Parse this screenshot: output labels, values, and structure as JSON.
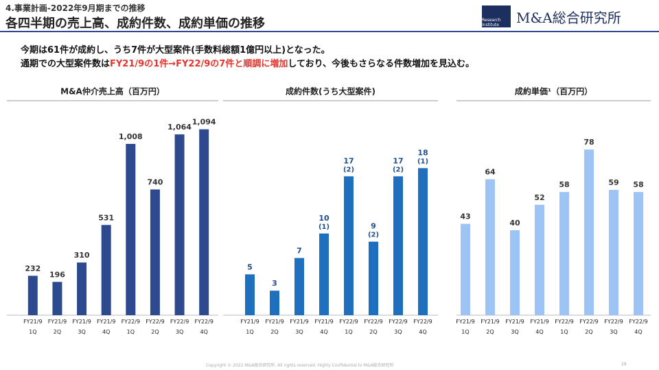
{
  "header": {
    "section": "4.事業計画-2022年9月期までの推移",
    "title": "各四半期の売上高、成約件数、成約単価の推移",
    "logo_mark": "Research Institute",
    "logo": "M&A総合研究所"
  },
  "summary": {
    "line1": "今期は61件が成約し、うち7件が大型案件(手数料総額1億円以上)となった。",
    "line2_before": "通期での大型案件数は",
    "line2_highlight": "FY21/9の1件→FY22/9の7件と順調に増加",
    "line2_after": "しており、今後もさらなる件数増加を見込む。"
  },
  "footer": {
    "copyright": "Copyright © 2022 M&A総合研究所. All rights reserved. Highly Confidential to M&A総合研究所",
    "page": "28"
  },
  "chart_data": [
    {
      "type": "bar",
      "title": "M&A仲介売上高（百万円）",
      "categories": [
        "FY21/9 1Q",
        "FY21/9 2Q",
        "FY21/9 3Q",
        "FY21/9 4Q",
        "FY22/9 1Q",
        "FY22/9 2Q",
        "FY22/9 3Q",
        "FY22/9 4Q"
      ],
      "values": [
        232,
        196,
        310,
        531,
        1008,
        740,
        1064,
        1094
      ],
      "value_labels": [
        "232",
        "196",
        "310",
        "531",
        "1,008",
        "740",
        "1,064",
        "1,094"
      ],
      "color": "#2e4a8f",
      "ylim": [
        0,
        1250
      ]
    },
    {
      "type": "bar",
      "title": "成約件数(うち大型案件)",
      "categories": [
        "FY21/9 1Q",
        "FY21/9 2Q",
        "FY21/9 3Q",
        "FY21/9 4Q",
        "FY22/9 1Q",
        "FY22/9 2Q",
        "FY22/9 3Q",
        "FY22/9 4Q"
      ],
      "values": [
        5,
        3,
        7,
        10,
        17,
        9,
        17,
        18
      ],
      "sub_labels": [
        null,
        null,
        null,
        "(1)",
        "(2)",
        "(2)",
        "(2)",
        "(1)"
      ],
      "color": "#1f6fbf",
      "ylim": [
        0,
        26
      ]
    },
    {
      "type": "bar",
      "title": "成約単価¹（百万円）",
      "categories": [
        "FY21/9 1Q",
        "FY21/9 2Q",
        "FY21/9 3Q",
        "FY21/9 4Q",
        "FY22/9 1Q",
        "FY22/9 2Q",
        "FY22/9 3Q",
        "FY22/9 4Q"
      ],
      "values": [
        43,
        64,
        40,
        52,
        58,
        78,
        59,
        58
      ],
      "color": "#9ec3f5",
      "ylim": [
        0,
        100
      ]
    }
  ]
}
